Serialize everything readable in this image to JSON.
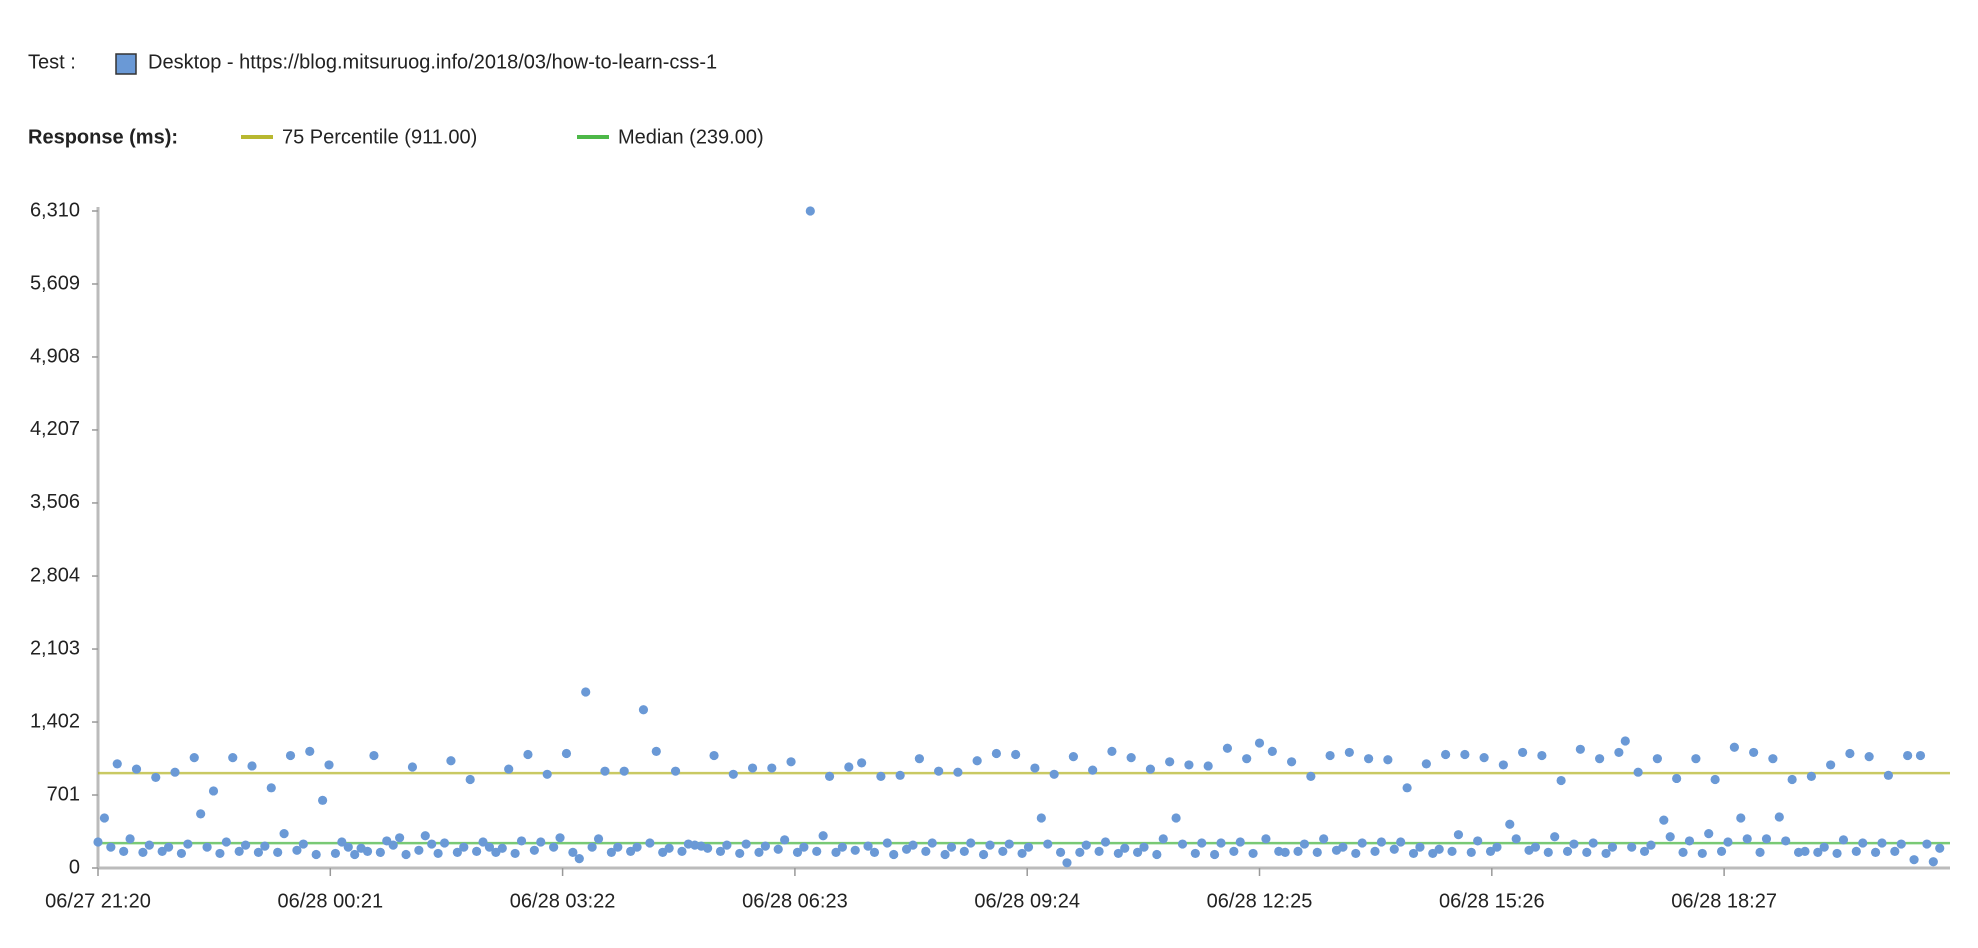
{
  "chart_data": {
    "type": "scatter",
    "test_label": "Test :",
    "test_name": "Desktop - https://blog.mitsuruog.info/2018/03/how-to-learn-css-1",
    "test_color": "#6a99d6",
    "y_label": "Response (ms):",
    "reference_lines": [
      {
        "name": "75 Percentile (911.00)",
        "value": 911,
        "color": "#b8b830"
      },
      {
        "name": "Median (239.00)",
        "value": 239,
        "color": "#4db848"
      }
    ],
    "ylim": [
      0,
      6310
    ],
    "yticks": [
      0,
      701,
      {
        "value": 1402,
        "label": "1,402"
      },
      {
        "value": 2103,
        "label": "2,103"
      },
      {
        "value": 2804,
        "label": "2,804"
      },
      {
        "value": 3506,
        "label": "3,506"
      },
      {
        "value": 4207,
        "label": "4,207"
      },
      {
        "value": 4908,
        "label": "4,908"
      },
      {
        "value": 5609,
        "label": "5,609"
      },
      {
        "value": 6310,
        "label": "6,310"
      }
    ],
    "xlim": [
      "06/27 21:20",
      "06/28 21:23"
    ],
    "xticks": [
      "06/27 21:20",
      "06/28 00:21",
      "06/28 03:22",
      "06/28 06:23",
      "06/28 09:24",
      "06/28 12:25",
      "06/28 15:26",
      "06/28 18:27"
    ],
    "series": [
      {
        "name": "Desktop - https://blog.mitsuruog.info/2018/03/how-to-learn-css-1",
        "color": "#6a99d6",
        "x": [
          "06/27 21:20",
          "06/27 21:25",
          "06/27 21:30",
          "06/27 21:35",
          "06/27 21:40",
          "06/27 21:45",
          "06/27 21:50",
          "06/27 21:55",
          "06/27 22:00",
          "06/27 22:05",
          "06/27 22:10",
          "06/27 22:15",
          "06/27 22:20",
          "06/27 22:25",
          "06/27 22:30",
          "06/27 22:35",
          "06/27 22:40",
          "06/27 22:45",
          "06/27 22:50",
          "06/27 22:55",
          "06/27 23:00",
          "06/27 23:05",
          "06/27 23:10",
          "06/27 23:15",
          "06/27 23:20",
          "06/27 23:25",
          "06/27 23:30",
          "06/27 23:35",
          "06/27 23:40",
          "06/27 23:45",
          "06/27 23:50",
          "06/27 23:55",
          "06/28 00:00",
          "06/28 00:05",
          "06/28 00:10",
          "06/28 00:15",
          "06/28 00:20",
          "06/28 00:25",
          "06/28 00:30",
          "06/28 00:35",
          "06/28 00:40",
          "06/28 00:45",
          "06/28 00:50",
          "06/28 00:55",
          "06/28 01:00",
          "06/28 01:05",
          "06/28 01:10",
          "06/28 01:15",
          "06/28 01:20",
          "06/28 01:25",
          "06/28 01:30",
          "06/28 01:35",
          "06/28 01:40",
          "06/28 01:45",
          "06/28 01:50",
          "06/28 01:55",
          "06/28 02:00",
          "06/28 02:05",
          "06/28 02:10",
          "06/28 02:15",
          "06/28 02:20",
          "06/28 02:25",
          "06/28 02:30",
          "06/28 02:35",
          "06/28 02:40",
          "06/28 02:45",
          "06/28 02:50",
          "06/28 02:55",
          "06/28 03:00",
          "06/28 03:05",
          "06/28 03:10",
          "06/28 03:15",
          "06/28 03:20",
          "06/28 03:25",
          "06/28 03:30",
          "06/28 03:35",
          "06/28 03:40",
          "06/28 03:45",
          "06/28 03:50",
          "06/28 03:55",
          "06/28 04:00",
          "06/28 04:05",
          "06/28 04:10",
          "06/28 04:15",
          "06/28 04:20",
          "06/28 04:25",
          "06/28 04:30",
          "06/28 04:35",
          "06/28 04:40",
          "06/28 04:45",
          "06/28 04:50",
          "06/28 04:55",
          "06/28 05:00",
          "06/28 05:05",
          "06/28 05:10",
          "06/28 05:15",
          "06/28 05:20",
          "06/28 05:25",
          "06/28 05:30",
          "06/28 05:35",
          "06/28 05:40",
          "06/28 05:45",
          "06/28 05:50",
          "06/28 05:55",
          "06/28 06:00",
          "06/28 06:05",
          "06/28 06:10",
          "06/28 06:15",
          "06/28 06:20",
          "06/28 06:25",
          "06/28 06:30",
          "06/28 06:35",
          "06/28 06:40",
          "06/28 06:45",
          "06/28 06:50",
          "06/28 06:55",
          "06/28 07:00",
          "06/28 07:05",
          "06/28 07:10",
          "06/28 07:15",
          "06/28 07:20",
          "06/28 07:25",
          "06/28 07:30",
          "06/28 07:35",
          "06/28 07:40",
          "06/28 07:45",
          "06/28 07:50",
          "06/28 07:55",
          "06/28 08:00",
          "06/28 08:05",
          "06/28 08:10",
          "06/28 08:15",
          "06/28 08:20",
          "06/28 08:25",
          "06/28 08:30",
          "06/28 08:35",
          "06/28 08:40",
          "06/28 08:45",
          "06/28 08:50",
          "06/28 08:55",
          "06/28 09:00",
          "06/28 09:05",
          "06/28 09:10",
          "06/28 09:15",
          "06/28 09:20",
          "06/28 09:25",
          "06/28 09:30",
          "06/28 09:35",
          "06/28 09:40",
          "06/28 09:45",
          "06/28 09:50",
          "06/28 09:55",
          "06/28 10:00",
          "06/28 10:05",
          "06/28 10:10",
          "06/28 10:15",
          "06/28 10:20",
          "06/28 10:25",
          "06/28 10:30",
          "06/28 10:35",
          "06/28 10:40",
          "06/28 10:45",
          "06/28 10:50",
          "06/28 10:55",
          "06/28 11:00",
          "06/28 11:05",
          "06/28 11:10",
          "06/28 11:15",
          "06/28 11:20",
          "06/28 11:25",
          "06/28 11:30",
          "06/28 11:35",
          "06/28 11:40",
          "06/28 11:45",
          "06/28 11:50",
          "06/28 11:55",
          "06/28 12:00",
          "06/28 12:05",
          "06/28 12:10",
          "06/28 12:15",
          "06/28 12:20",
          "06/28 12:25",
          "06/28 12:30",
          "06/28 12:35",
          "06/28 12:40",
          "06/28 12:45",
          "06/28 12:50",
          "06/28 12:55",
          "06/28 13:00",
          "06/28 13:05",
          "06/28 13:10",
          "06/28 13:15",
          "06/28 13:20",
          "06/28 13:25",
          "06/28 13:30",
          "06/28 13:35",
          "06/28 13:40",
          "06/28 13:45",
          "06/28 13:50",
          "06/28 13:55",
          "06/28 14:00",
          "06/28 14:05",
          "06/28 14:10",
          "06/28 14:15",
          "06/28 14:20",
          "06/28 14:25",
          "06/28 14:30",
          "06/28 14:35",
          "06/28 14:40",
          "06/28 14:45",
          "06/28 14:50",
          "06/28 14:55",
          "06/28 15:00",
          "06/28 15:05",
          "06/28 15:10",
          "06/28 15:15",
          "06/28 15:20",
          "06/28 15:25",
          "06/28 15:30",
          "06/28 15:35",
          "06/28 15:40",
          "06/28 15:45",
          "06/28 15:50",
          "06/28 15:55",
          "06/28 16:00",
          "06/28 16:05",
          "06/28 16:10",
          "06/28 16:15",
          "06/28 16:20",
          "06/28 16:25",
          "06/28 16:30",
          "06/28 16:35",
          "06/28 16:40",
          "06/28 16:45",
          "06/28 16:50",
          "06/28 16:55",
          "06/28 17:00",
          "06/28 17:05",
          "06/28 17:10",
          "06/28 17:15",
          "06/28 17:20",
          "06/28 17:25",
          "06/28 17:30",
          "06/28 17:35",
          "06/28 17:40",
          "06/28 17:45",
          "06/28 17:50",
          "06/28 17:55",
          "06/28 18:00",
          "06/28 18:05",
          "06/28 18:10",
          "06/28 18:15",
          "06/28 18:20",
          "06/28 18:25",
          "06/28 18:30",
          "06/28 18:35",
          "06/28 18:40",
          "06/28 18:45",
          "06/28 18:50",
          "06/28 18:55",
          "06/28 19:00",
          "06/28 19:05",
          "06/28 19:10",
          "06/28 19:15",
          "06/28 19:20",
          "06/28 19:25",
          "06/28 19:30",
          "06/28 19:35",
          "06/28 19:40",
          "06/28 19:45",
          "06/28 19:50",
          "06/28 19:55",
          "06/28 20:00",
          "06/28 20:05",
          "06/28 20:10",
          "06/28 20:15",
          "06/28 20:20",
          "06/28 20:25",
          "06/28 20:30",
          "06/28 20:35",
          "06/28 20:40",
          "06/28 20:45",
          "06/28 20:50",
          "06/28 20:55",
          "06/28 21:00",
          "06/28 21:05",
          "06/28 21:10",
          "06/28 21:15"
        ],
        "values": [
          250,
          480,
          200,
          1000,
          160,
          280,
          950,
          150,
          220,
          870,
          160,
          200,
          920,
          140,
          230,
          1060,
          520,
          200,
          740,
          140,
          250,
          1060,
          160,
          220,
          980,
          150,
          210,
          770,
          150,
          330,
          1080,
          170,
          230,
          1120,
          130,
          650,
          990,
          140,
          250,
          200,
          130,
          190,
          160,
          1080,
          150,
          260,
          220,
          290,
          130,
          970,
          170,
          310,
          230,
          140,
          240,
          1030,
          150,
          200,
          850,
          160,
          250,
          200,
          150,
          190,
          950,
          140,
          260,
          1090,
          170,
          250,
          900,
          200,
          290,
          1100,
          150,
          90,
          1690,
          200,
          280,
          930,
          150,
          200,
          930,
          160,
          200,
          1520,
          240,
          1120,
          150,
          190,
          930,
          160,
          230,
          220,
          210,
          190,
          1080,
          160,
          220,
          900,
          140,
          230,
          960,
          150,
          210,
          960,
          180,
          270,
          1020,
          150,
          200,
          6310,
          160,
          310,
          880,
          150,
          200,
          970,
          170,
          1010,
          210,
          150,
          880,
          240,
          130,
          890,
          180,
          220,
          1050,
          160,
          240,
          930,
          130,
          200,
          920,
          160,
          240,
          1030,
          130,
          220,
          1100,
          160,
          230,
          1090,
          140,
          200,
          960,
          480,
          230,
          900,
          150,
          50,
          1070,
          150,
          220,
          940,
          160,
          250,
          1120,
          140,
          190,
          1060,
          150,
          200,
          950,
          130,
          280,
          1020,
          480,
          230,
          990,
          140,
          240,
          980,
          130,
          240,
          1150,
          160,
          250,
          1050,
          140,
          1200,
          280,
          1120,
          160,
          150,
          1020,
          160,
          230,
          880,
          150,
          280,
          1080,
          170,
          200,
          1110,
          140,
          240,
          1050,
          160,
          250,
          1040,
          180,
          250,
          770,
          140,
          200,
          1000,
          140,
          180,
          1090,
          160,
          320,
          1090,
          150,
          260,
          1060,
          160,
          200,
          990,
          420,
          280,
          1110,
          170,
          200,
          1080,
          150,
          300,
          840,
          160,
          230,
          1140,
          150,
          240,
          1050,
          140,
          200,
          1110,
          1220,
          200,
          920,
          160,
          220,
          1050,
          460,
          300,
          860,
          150,
          260,
          1050,
          140,
          330,
          850,
          160,
          250,
          1160,
          480,
          280,
          1110,
          150,
          280,
          1050,
          490,
          260,
          850,
          150,
          160,
          880,
          150,
          200,
          990,
          140,
          270,
          1100,
          160,
          240,
          1070,
          150,
          240,
          890,
          160,
          230,
          1080,
          80,
          1080,
          230,
          60,
          190
        ]
      }
    ]
  }
}
